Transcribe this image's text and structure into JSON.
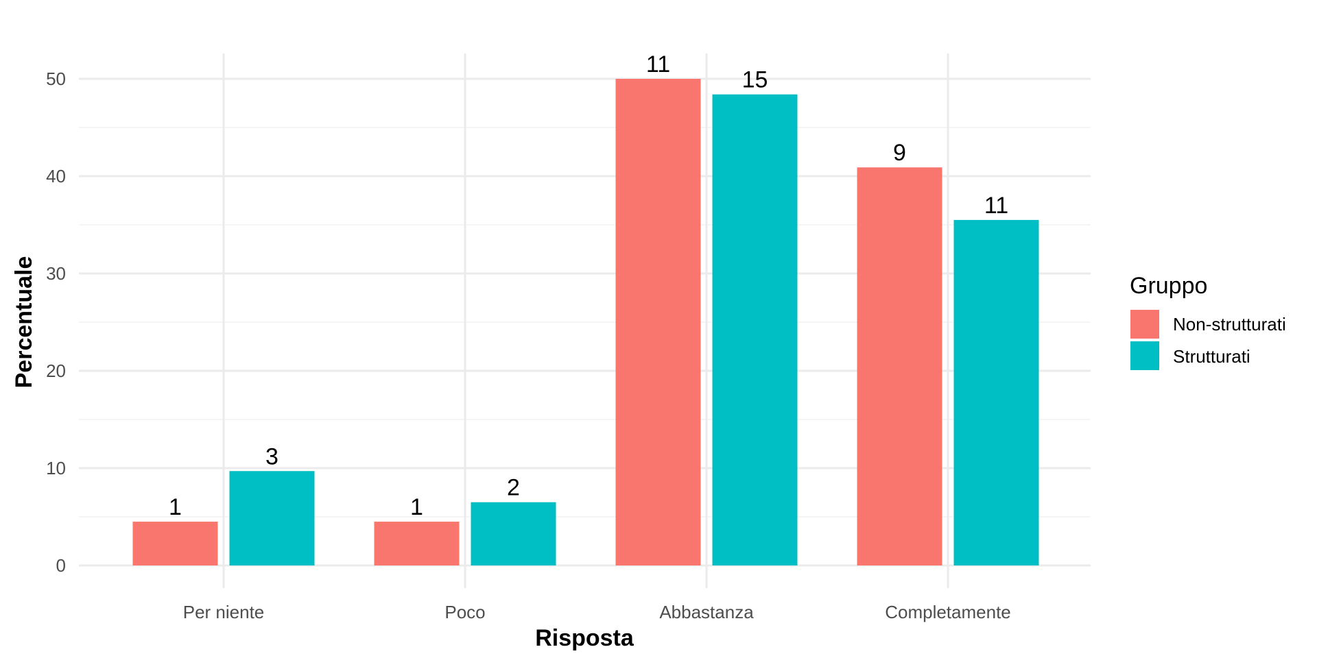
{
  "chart_data": {
    "type": "bar",
    "xlabel": "Risposta",
    "ylabel": "Percentuale",
    "categories": [
      "Per niente",
      "Poco",
      "Abbastanza",
      "Completamente"
    ],
    "ylim": [
      0,
      52
    ],
    "yticks": [
      0,
      10,
      20,
      30,
      40,
      50
    ],
    "grid": true,
    "legend": {
      "title": "Gruppo",
      "position": "right"
    },
    "series": [
      {
        "name": "Non-strutturati",
        "color": "#F8766D",
        "values": [
          4.5,
          4.5,
          50.0,
          40.9
        ],
        "labels": [
          "1",
          "1",
          "11",
          "9"
        ]
      },
      {
        "name": "Strutturati",
        "color": "#00BFC4",
        "values": [
          9.7,
          6.5,
          48.4,
          35.5
        ],
        "labels": [
          "3",
          "2",
          "15",
          "11"
        ]
      }
    ]
  }
}
